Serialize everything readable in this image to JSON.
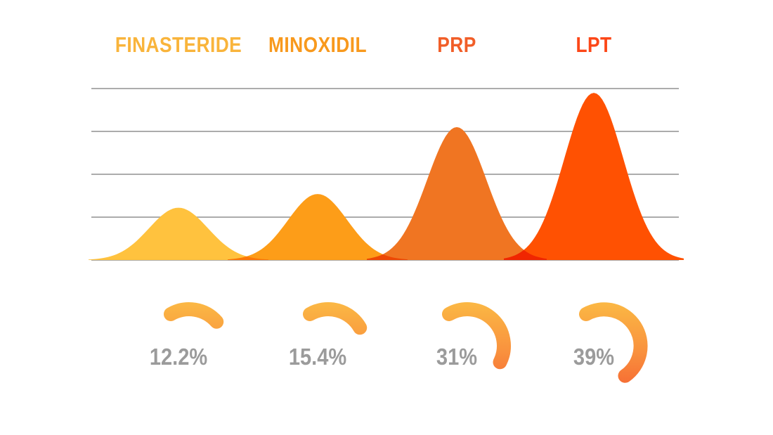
{
  "chart_data": {
    "type": "area",
    "subtype": "bell-curve-comparison",
    "title": "",
    "categories": [
      "FINASTERIDE",
      "MINOXIDIL",
      "PRP",
      "LPT"
    ],
    "series": [
      {
        "name": "result-percentage",
        "values": [
          12.2,
          15.4,
          31,
          39
        ]
      }
    ],
    "value_labels": [
      "12.2%",
      "15.4%",
      "31%",
      "39%"
    ],
    "unit": "%",
    "ylim": [
      0,
      40
    ],
    "gridline_step": 10,
    "gridline_count": 5,
    "grid": true,
    "legend": false,
    "axis_tick_labels": "none"
  },
  "treatments": [
    {
      "label": "FINASTERIDE",
      "pct": 12.2,
      "pct_label": "12.2%",
      "label_color": "#F9B43B",
      "curve_color": "#FFC23E"
    },
    {
      "label": "MINOXIDIL",
      "pct": 15.4,
      "pct_label": "15.4%",
      "label_color": "#F8991D",
      "curve_color": "#FD9D18"
    },
    {
      "label": "PRP",
      "pct": 31,
      "pct_label": "31%",
      "label_color": "#F15E28",
      "curve_color": "#F07522"
    },
    {
      "label": "LPT",
      "pct": 39,
      "pct_label": "39%",
      "label_color": "#FC4718",
      "curve_color": "#FF5102"
    }
  ],
  "colors": {
    "background": "#FFFFFF",
    "gridline": "#ACACAC",
    "pct_text": "#9B9B9B",
    "arc_gradient_top": "#FBB844",
    "arc_gradient_mid": "#F9923E",
    "arc_gradient_bottom": "#F4512C"
  }
}
